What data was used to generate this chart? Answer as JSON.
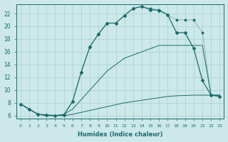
{
  "xlabel": "Humidex (Indice chaleur)",
  "bg_color": "#cce8e8",
  "grid_color": "#a8d0d0",
  "line_color": "#1a6b6b",
  "xlim": [
    -0.5,
    23.5
  ],
  "ylim": [
    5.5,
    23.5
  ],
  "yticks": [
    6,
    8,
    10,
    12,
    14,
    16,
    18,
    20,
    22
  ],
  "xticks": [
    0,
    1,
    2,
    3,
    4,
    5,
    6,
    7,
    8,
    9,
    10,
    11,
    12,
    13,
    14,
    15,
    16,
    17,
    18,
    19,
    20,
    21,
    22,
    23
  ],
  "c1_x": [
    0,
    1,
    2,
    3,
    4,
    5,
    6,
    7,
    8,
    9,
    10,
    11,
    12,
    13,
    14,
    15,
    16,
    17,
    18,
    19,
    20,
    21,
    22,
    23
  ],
  "c1_y": [
    7.8,
    7.0,
    6.2,
    6.1,
    6.0,
    6.1,
    8.2,
    12.8,
    16.8,
    18.8,
    20.5,
    20.5,
    21.7,
    22.8,
    23.1,
    22.8,
    22.6,
    21.8,
    21.0,
    21.0,
    21.0,
    19.0,
    9.2,
    9.0
  ],
  "c2_x": [
    0,
    1,
    2,
    3,
    4,
    5,
    6,
    7,
    8,
    9,
    10,
    11,
    12,
    13,
    14,
    15,
    16,
    17,
    18,
    19,
    20,
    21,
    22,
    23
  ],
  "c2_y": [
    7.8,
    7.0,
    6.2,
    6.1,
    6.0,
    6.1,
    8.2,
    12.8,
    16.8,
    18.8,
    20.5,
    20.5,
    21.7,
    22.8,
    23.1,
    22.6,
    22.5,
    21.8,
    19.0,
    19.0,
    16.5,
    11.5,
    9.2,
    9.0
  ],
  "c3_x": [
    0,
    1,
    2,
    3,
    4,
    5,
    6,
    7,
    8,
    9,
    10,
    11,
    12,
    13,
    14,
    15,
    16,
    17,
    18,
    19,
    20,
    21,
    22,
    23
  ],
  "c3_y": [
    7.8,
    7.0,
    6.2,
    6.0,
    6.0,
    6.0,
    6.2,
    6.5,
    6.8,
    7.1,
    7.4,
    7.7,
    8.0,
    8.2,
    8.4,
    8.6,
    8.8,
    9.0,
    9.1,
    9.15,
    9.2,
    9.2,
    9.2,
    9.2
  ],
  "c4_x": [
    0,
    2,
    3,
    4,
    5,
    6,
    7,
    8,
    9,
    10,
    11,
    12,
    13,
    14,
    15,
    16,
    17,
    18,
    19,
    20,
    21,
    22,
    23
  ],
  "c4_y": [
    7.8,
    6.2,
    6.0,
    6.0,
    6.2,
    7.0,
    8.5,
    10.0,
    11.5,
    13.0,
    14.0,
    15.0,
    15.5,
    16.0,
    16.5,
    17.0,
    17.0,
    17.0,
    17.0,
    17.0,
    17.0,
    9.2,
    9.2
  ]
}
